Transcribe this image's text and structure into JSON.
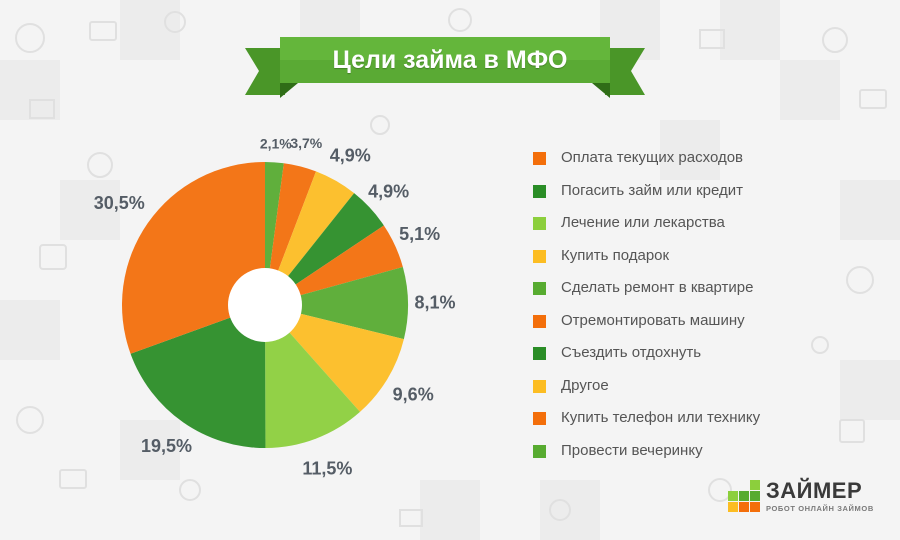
{
  "title": "Цели займа в МФО",
  "colors": {
    "orange": "#f36e0a",
    "dark_green": "#2a8d26",
    "light_green": "#8ccf3c",
    "yellow": "#fcbd22",
    "green": "#57ab30",
    "ribbon": "#5aaa34",
    "background": "#f4f4f4"
  },
  "chart_data": {
    "type": "pie",
    "title": "Цели займа в МФО",
    "hole": true,
    "slices": [
      {
        "label": "Провести вечеринку",
        "value": 2.1,
        "value_label": "2,1%",
        "color": "#57ab30"
      },
      {
        "label": "Купить телефон или технику",
        "value": 3.7,
        "value_label": "3,7%",
        "color": "#f36e0a"
      },
      {
        "label": "Другое",
        "value": 4.9,
        "value_label": "4,9%",
        "color": "#fcbd22"
      },
      {
        "label": "Съездить отдохнуть",
        "value": 4.9,
        "value_label": "4,9%",
        "color": "#2a8d26"
      },
      {
        "label": "Отремонтировать машину",
        "value": 5.1,
        "value_label": "5,1%",
        "color": "#f36e0a"
      },
      {
        "label": "Сделать ремонт в квартире",
        "value": 8.1,
        "value_label": "8,1%",
        "color": "#57ab30"
      },
      {
        "label": "Купить подарок",
        "value": 9.6,
        "value_label": "9,6%",
        "color": "#fcbd22"
      },
      {
        "label": "Лечение или лекарства",
        "value": 11.5,
        "value_label": "11,5%",
        "color": "#8ccf3c"
      },
      {
        "label": "Погасить займ или кредит",
        "value": 19.5,
        "value_label": "19,5%",
        "color": "#2a8d26"
      },
      {
        "label": "Оплата текущих расходов",
        "value": 30.5,
        "value_label": "30,5%",
        "color": "#f36e0a"
      }
    ],
    "legend": [
      {
        "label": "Оплата текущих расходов",
        "color": "#f36e0a"
      },
      {
        "label": "Погасить займ или кредит",
        "color": "#2a8d26"
      },
      {
        "label": "Лечение или лекарства",
        "color": "#8ccf3c"
      },
      {
        "label": "Купить подарок",
        "color": "#fcbd22"
      },
      {
        "label": "Сделать ремонт в квартире",
        "color": "#57ab30"
      },
      {
        "label": "Отремонтировать машину",
        "color": "#f36e0a"
      },
      {
        "label": "Съездить отдохнуть",
        "color": "#2a8d26"
      },
      {
        "label": "Другое",
        "color": "#fcbd22"
      },
      {
        "label": "Купить телефон или технику",
        "color": "#f36e0a"
      },
      {
        "label": "Провести вечеринку",
        "color": "#57ab30"
      }
    ],
    "legend_position": "right"
  },
  "logo": {
    "name": "ЗАЙМЕР",
    "tagline": "РОБОТ ОНЛАЙН ЗАЙМОВ",
    "colors": [
      "#8ccf3c",
      "#57ab30",
      "#fcbd22",
      "#f36e0a"
    ]
  }
}
